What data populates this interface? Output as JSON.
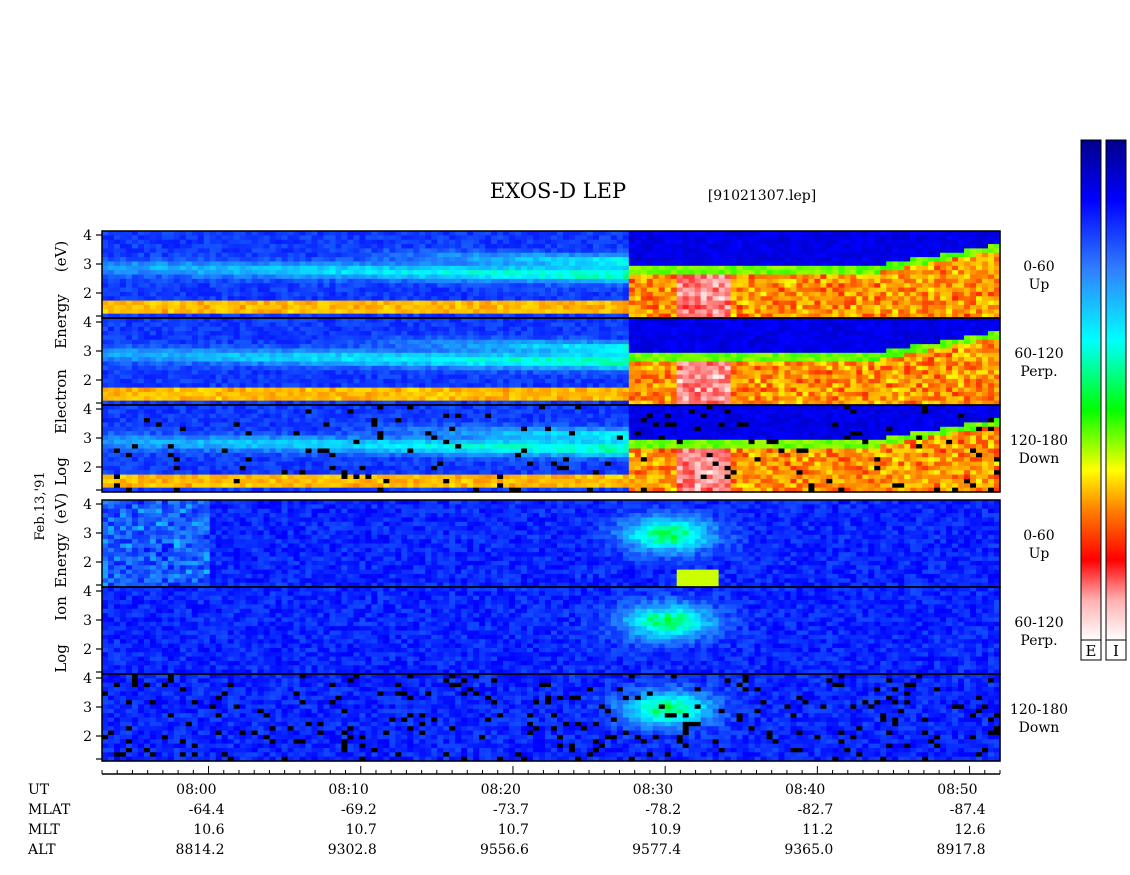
{
  "title": "EXOS-D LEP",
  "file_label": "[91021307.lep]",
  "date_label": "Feb.13,'91",
  "chart_data": {
    "type": "heatmap",
    "x_axis": {
      "label": "UT",
      "range": [
        "07:53",
        "08:52"
      ],
      "ticks": [
        "08:00",
        "08:10",
        "08:20",
        "08:30",
        "08:40",
        "08:50"
      ]
    },
    "aux_rows": [
      {
        "label": "MLAT",
        "values": [
          "-64.4",
          "-69.2",
          "-73.7",
          "-78.2",
          "-82.7",
          "-87.4"
        ]
      },
      {
        "label": "MLT",
        "values": [
          "10.6",
          "10.7",
          "10.7",
          "10.9",
          "11.2",
          "12.6"
        ]
      },
      {
        "label": "ALT",
        "values": [
          "8814.2",
          "9302.8",
          "9556.6",
          "9577.4",
          "9365.0",
          "8917.8"
        ]
      }
    ],
    "groups": [
      {
        "key": "electron",
        "ylabel": [
          "Log",
          "Electron",
          "Energy",
          "(eV)"
        ],
        "ylim": [
          1,
          4
        ],
        "yticks": [
          "4",
          "3",
          "2"
        ],
        "panels": [
          {
            "label": [
              "0-60",
              "Up"
            ]
          },
          {
            "label": [
              "60-120",
              "Perp."
            ]
          },
          {
            "label": [
              "120-180",
              "Down"
            ]
          }
        ]
      },
      {
        "key": "ion",
        "ylabel": [
          "Log",
          "Ion",
          "Energy",
          "(eV)"
        ],
        "ylim": [
          1,
          4
        ],
        "yticks": [
          "4",
          "3",
          "2"
        ],
        "panels": [
          {
            "label": [
              "0-60",
              "Up"
            ]
          },
          {
            "label": [
              "60-120",
              "Perp."
            ]
          },
          {
            "label": [
              "120-180",
              "Down"
            ]
          }
        ]
      }
    ],
    "colorbars": [
      {
        "label": "E"
      },
      {
        "label": "I"
      }
    ],
    "colors": {
      "scale": [
        "#ffffff",
        "#ff0000",
        "#ff8000",
        "#ffff00",
        "#00ff00",
        "#00ffff",
        "#2080ff",
        "#0000ff",
        "#00008b"
      ],
      "background": "#1030c8"
    }
  }
}
